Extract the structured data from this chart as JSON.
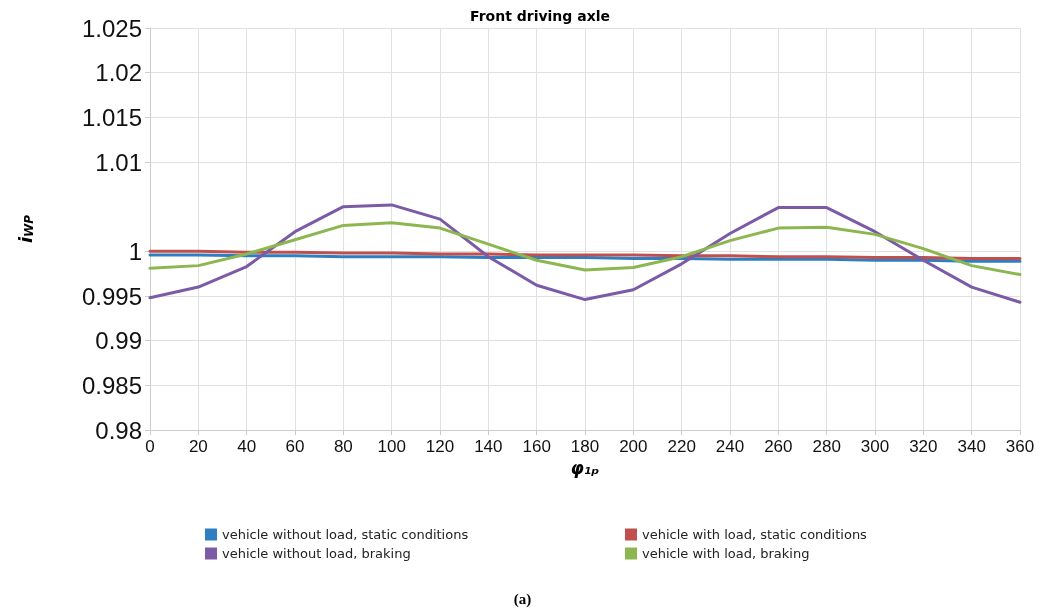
{
  "chart_data": {
    "type": "line",
    "title": "Front driving axle",
    "xlabel": "φ₁ₚ",
    "ylabel": "i$_{WP}$",
    "categories": [
      "0",
      "20",
      "40",
      "60",
      "80",
      "100",
      "120",
      "140",
      "160",
      "180",
      "200",
      "220",
      "240",
      "260",
      "280",
      "300",
      "320",
      "340",
      "360"
    ],
    "series": [
      {
        "name": "vehicle without load, static conditions",
        "color": "#2e7fc1",
        "values": [
          0.9996,
          0.9996,
          0.9995,
          0.9995,
          0.9994,
          0.9994,
          0.9994,
          0.9993,
          0.9993,
          0.9993,
          0.9992,
          0.9992,
          0.9991,
          0.9991,
          0.9991,
          0.999,
          0.999,
          0.9989,
          0.9989
        ]
      },
      {
        "name": "vehicle with load, static conditions",
        "color": "#c0504d",
        "values": [
          1.0,
          1.0,
          0.9999,
          0.9999,
          0.9998,
          0.9998,
          0.9997,
          0.9997,
          0.9996,
          0.9996,
          0.9996,
          0.9995,
          0.9995,
          0.9994,
          0.9994,
          0.9993,
          0.9993,
          0.9992,
          0.9992
        ]
      },
      {
        "name": "vehicle without load, braking",
        "color": "#7b5aa6",
        "values": [
          0.9948,
          0.996,
          0.9983,
          1.0022,
          1.005,
          1.0052,
          1.0036,
          0.9994,
          0.9962,
          0.9946,
          0.9957,
          0.9986,
          1.002,
          1.0049,
          1.0049,
          1.0022,
          0.999,
          0.996,
          0.9943
        ]
      },
      {
        "name": "vehicle with load, braking",
        "color": "#8cb650",
        "values": [
          0.9981,
          0.9984,
          0.9997,
          1.0013,
          1.0029,
          1.0032,
          1.0026,
          1.0008,
          0.999,
          0.9979,
          0.9982,
          0.9994,
          1.0012,
          1.0026,
          1.0027,
          1.0019,
          1.0003,
          0.9984,
          0.9974
        ]
      }
    ],
    "ylim": [
      0.98,
      1.025
    ],
    "yticks": [
      0.98,
      0.985,
      0.99,
      0.995,
      1,
      1.01,
      1.015,
      1.02,
      1.025
    ],
    "grid": true,
    "legend": "bottom",
    "marker": "none",
    "line_style": "solid",
    "annotations": [
      "(a)"
    ]
  }
}
